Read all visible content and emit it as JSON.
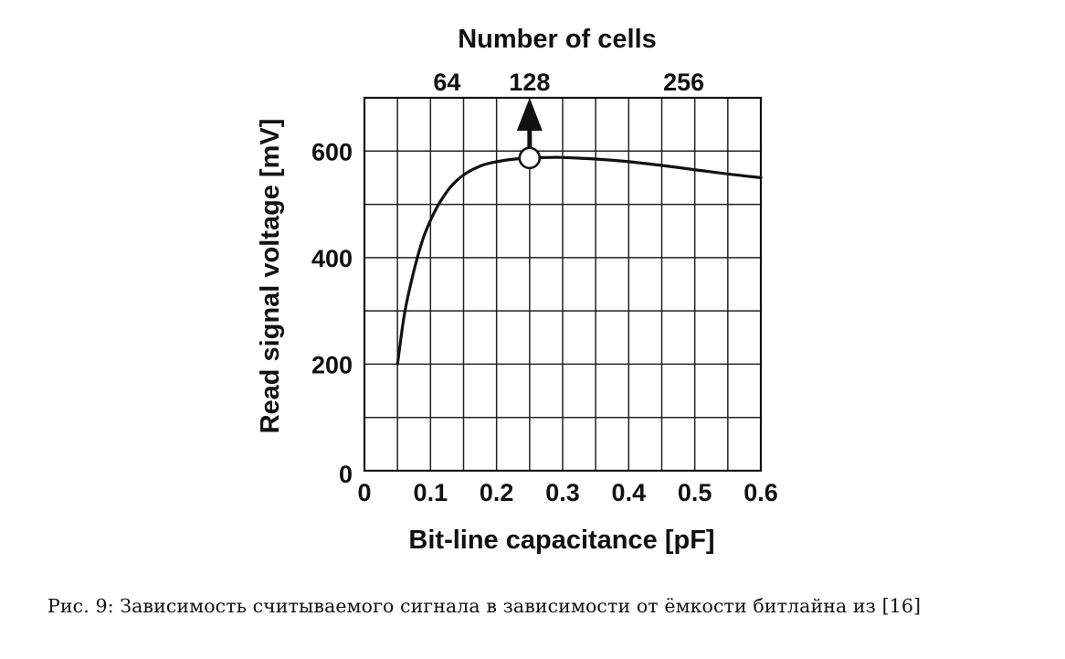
{
  "chart_data": {
    "type": "line",
    "title": "Number of cells",
    "xlabel": "Bit-line capacitance [pF]",
    "ylabel": "Read signal voltage [mV]",
    "xlim": [
      0,
      0.6
    ],
    "ylim": [
      0,
      700
    ],
    "x_ticks": [
      0,
      0.1,
      0.2,
      0.3,
      0.4,
      0.5,
      0.6
    ],
    "x_tick_labels": [
      "0",
      "0.1",
      "0.2",
      "0.3",
      "0.4",
      "0.5",
      "0.6"
    ],
    "y_ticks": [
      0,
      200,
      400,
      600
    ],
    "y_tick_labels": [
      "0",
      "200",
      "400",
      "600"
    ],
    "grid": true,
    "top_axis": {
      "label": "Number of cells",
      "ticks": [
        {
          "x": 0.125,
          "label": "64"
        },
        {
          "x": 0.25,
          "label": "128"
        },
        {
          "x": 0.5,
          "label": "256"
        }
      ]
    },
    "series": [
      {
        "name": "",
        "x": [
          0.05,
          0.06,
          0.07,
          0.08,
          0.09,
          0.1,
          0.11,
          0.12,
          0.13,
          0.14,
          0.15,
          0.16,
          0.18,
          0.2,
          0.22,
          0.25,
          0.28,
          0.3,
          0.35,
          0.4,
          0.45,
          0.5,
          0.55,
          0.6
        ],
        "y": [
          200,
          290,
          350,
          400,
          440,
          470,
          495,
          515,
          532,
          545,
          555,
          563,
          574,
          580,
          584,
          587,
          588,
          588,
          585,
          580,
          573,
          565,
          557,
          550
        ]
      }
    ],
    "annotations": [
      {
        "type": "circle-marker",
        "x": 0.25,
        "y": 587
      },
      {
        "type": "arrow-up",
        "x": 0.25,
        "from_y": 587,
        "to_y": 700,
        "label": "128"
      }
    ]
  },
  "caption": "Рис. 9: Зависимость считываемого сигнала в зависимости от ёмкости битлайна из [16]"
}
